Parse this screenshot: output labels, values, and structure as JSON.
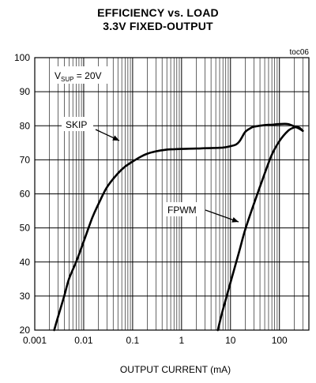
{
  "chart_data": {
    "type": "line",
    "title": "EFFICIENCY vs. LOAD",
    "subtitle": "3.3V FIXED-OUTPUT",
    "figure_id": "toc06",
    "xlabel": "OUTPUT CURRENT (mA)",
    "ylabel": "",
    "x_scale": "log",
    "xlim": [
      0.001,
      400
    ],
    "ylim": [
      20,
      100
    ],
    "x_ticks": [
      0.001,
      0.01,
      0.1,
      1,
      10,
      100
    ],
    "x_tick_labels": [
      "0.001",
      "0.01",
      "0.1",
      "1",
      "10",
      "100"
    ],
    "y_ticks": [
      20,
      30,
      40,
      50,
      60,
      70,
      80,
      90,
      100
    ],
    "y_tick_labels": [
      "20",
      "30",
      "40",
      "50",
      "60",
      "70",
      "80",
      "90",
      "100"
    ],
    "grid": true,
    "condition_label": {
      "base": "V",
      "sub": "SUP",
      "rest": " = 20V"
    },
    "series": [
      {
        "name": "SKIP",
        "x": [
          0.0025,
          0.003,
          0.004,
          0.005,
          0.007,
          0.01,
          0.015,
          0.02,
          0.03,
          0.05,
          0.07,
          0.1,
          0.15,
          0.2,
          0.3,
          0.5,
          0.7,
          1,
          2,
          3,
          5,
          7,
          10,
          13,
          15,
          17,
          20,
          25,
          30,
          50,
          70,
          100,
          150,
          200,
          250,
          300
        ],
        "y": [
          20,
          24,
          30,
          35,
          40,
          46,
          53,
          57,
          62,
          66,
          68,
          69.5,
          71,
          71.8,
          72.5,
          73,
          73.1,
          73.2,
          73.3,
          73.4,
          73.5,
          73.6,
          74,
          74.5,
          75.3,
          76.5,
          78.2,
          79.2,
          79.7,
          80.2,
          80.3,
          80.5,
          80.5,
          79.8,
          79.2,
          78.5
        ]
      },
      {
        "name": "FPWM",
        "x": [
          5.5,
          7,
          10,
          15,
          20,
          30,
          50,
          70,
          100,
          150,
          200,
          250,
          300
        ],
        "y": [
          20,
          26,
          34,
          43,
          49.5,
          57,
          66,
          71.5,
          75.5,
          78.5,
          79.5,
          79.5,
          78.5
        ]
      }
    ],
    "annotations": [
      {
        "text": "SKIP",
        "series": "SKIP"
      },
      {
        "text": "FPWM",
        "series": "FPWM"
      }
    ]
  }
}
